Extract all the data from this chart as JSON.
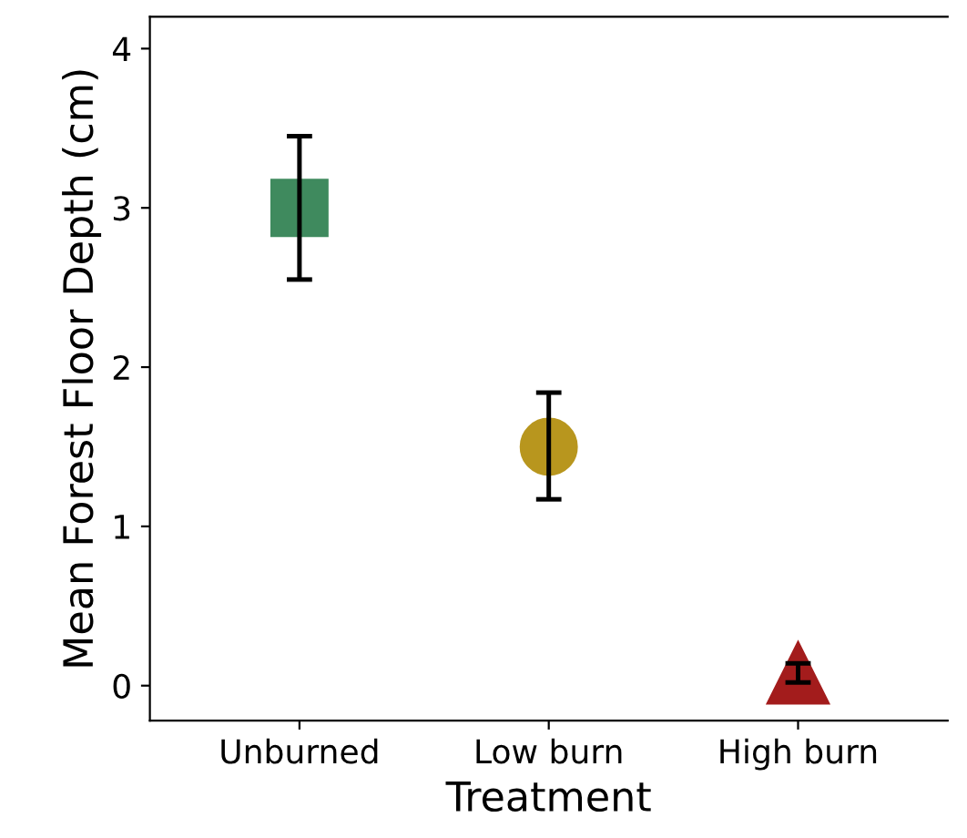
{
  "chart_data": {
    "type": "scatter",
    "xlabel": "Treatment",
    "ylabel": "Mean Forest Floor Depth (cm)",
    "categories": [
      "Unburned",
      "Low burn",
      "High burn"
    ],
    "series": [
      {
        "color": "#3f8a5e",
        "marker": "square",
        "x": [
          "Unburned"
        ],
        "values": [
          3.0
        ],
        "errors": [
          [
            2.55,
            3.45
          ]
        ]
      },
      {
        "color": "#b8961e",
        "marker": "circle",
        "x": [
          "Low burn"
        ],
        "values": [
          1.5
        ],
        "errors": [
          [
            1.17,
            1.84
          ]
        ]
      },
      {
        "color": "#a31c1c",
        "marker": "triangle",
        "x": [
          "High burn"
        ],
        "values": [
          0.08
        ],
        "errors": [
          [
            0.02,
            0.14
          ]
        ]
      }
    ],
    "ylim": [
      -0.22,
      4.2
    ],
    "yticks": [
      0,
      1,
      2,
      3,
      4
    ],
    "grid": false,
    "legend": false
  }
}
